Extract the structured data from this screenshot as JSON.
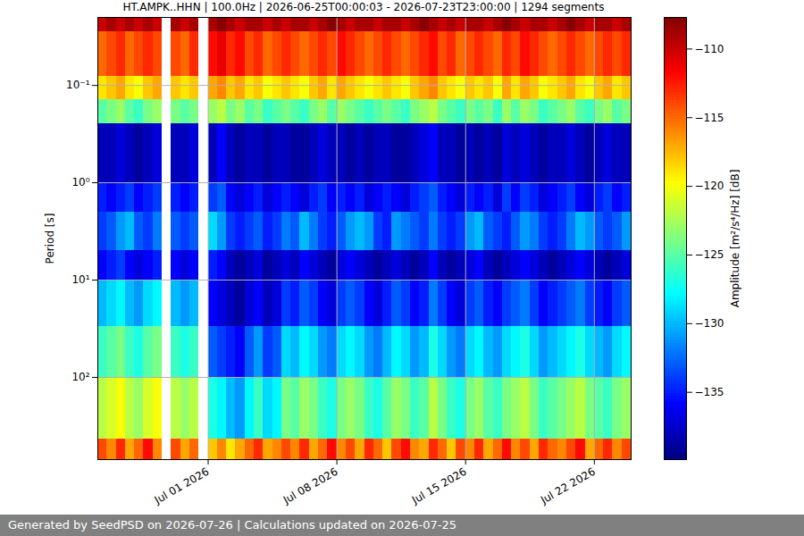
{
  "chart_data": {
    "type": "heatmap",
    "title": "HT.AMPK..HHN | 100.0Hz | 2026-06-25T00:00:03 - 2026-07-23T23:00:00 | 1294 segments",
    "ylabel": "Period [s]",
    "caption": "Generated by SeedPSD on 2026-07-26 | Calculations updated on 2026-07-25",
    "log": "y",
    "grid": true,
    "xlim": [
      "2026-06-25T00:00",
      "2026-07-24T00:00"
    ],
    "ylim": [
      0.02,
      700
    ],
    "xticks": [
      {
        "value": "2026-07-01T00:00",
        "label": "Jul 01 2026"
      },
      {
        "value": "2026-07-08T00:00",
        "label": "Jul 08 2026"
      },
      {
        "value": "2026-07-15T00:00",
        "label": "Jul 15 2026"
      },
      {
        "value": "2026-07-22T00:00",
        "label": "Jul 22 2026"
      }
    ],
    "yticks": [
      {
        "value": 0.1,
        "label": "10⁻¹"
      },
      {
        "value": 1,
        "label": "10⁰"
      },
      {
        "value": 10,
        "label": "10¹"
      },
      {
        "value": 100,
        "label": "10²"
      }
    ],
    "x": [
      "2026-06-25T00:00",
      "2026-06-25T12:00",
      "2026-06-26T00:00",
      "2026-06-26T12:00",
      "2026-06-27T00:00",
      "2026-06-27T12:00",
      "2026-06-28T00:00",
      "2026-06-28T12:00",
      "2026-06-29T00:00",
      "2026-06-29T12:00",
      "2026-06-30T00:00",
      "2026-06-30T12:00",
      "2026-07-01T00:00",
      "2026-07-01T12:00",
      "2026-07-02T00:00",
      "2026-07-02T12:00",
      "2026-07-03T00:00",
      "2026-07-03T12:00",
      "2026-07-04T00:00",
      "2026-07-04T12:00",
      "2026-07-05T00:00",
      "2026-07-05T12:00",
      "2026-07-06T00:00",
      "2026-07-06T12:00",
      "2026-07-07T00:00",
      "2026-07-07T12:00",
      "2026-07-08T00:00",
      "2026-07-08T12:00",
      "2026-07-09T00:00",
      "2026-07-09T12:00",
      "2026-07-10T00:00",
      "2026-07-10T12:00",
      "2026-07-11T00:00",
      "2026-07-11T12:00",
      "2026-07-12T00:00",
      "2026-07-12T12:00",
      "2026-07-13T00:00",
      "2026-07-13T12:00",
      "2026-07-14T00:00",
      "2026-07-14T12:00",
      "2026-07-15T00:00",
      "2026-07-15T12:00",
      "2026-07-16T00:00",
      "2026-07-16T12:00",
      "2026-07-17T00:00",
      "2026-07-17T12:00",
      "2026-07-18T00:00",
      "2026-07-18T12:00",
      "2026-07-19T00:00",
      "2026-07-19T12:00",
      "2026-07-20T00:00",
      "2026-07-20T12:00",
      "2026-07-21T00:00",
      "2026-07-21T12:00",
      "2026-07-22T00:00",
      "2026-07-22T12:00",
      "2026-07-23T00:00",
      "2026-07-23T12:00"
    ],
    "y_edges": [
      0.02,
      0.028,
      0.08,
      0.14,
      0.25,
      1,
      2,
      5,
      10,
      30,
      100,
      430,
      700
    ],
    "values": [
      [
        -110,
        -109,
        -110,
        -109,
        -110,
        -109,
        -110,
        null,
        -109,
        -110,
        -109,
        null,
        -109,
        -108,
        -109,
        -110,
        -109,
        -109,
        -110,
        -109,
        -110,
        -109,
        -109,
        -110,
        -109,
        -108,
        -109,
        -110,
        -109,
        -109,
        -110,
        -109,
        -109,
        -110,
        -109,
        -108,
        -109,
        -110,
        -109,
        -110,
        -109,
        -109,
        -110,
        -109,
        -108,
        -109,
        -110,
        -109,
        -109,
        -110,
        -109,
        -108,
        -109,
        -110,
        -109,
        -109,
        -110,
        -109
      ],
      [
        -115,
        -114,
        -113,
        -115,
        -114,
        -113,
        -114,
        null,
        -114,
        -115,
        -113,
        null,
        -112,
        -111,
        -113,
        -112,
        -114,
        -113,
        -115,
        -114,
        -113,
        -114,
        -115,
        -114,
        -113,
        -114,
        -112,
        -113,
        -114,
        -115,
        -114,
        -113,
        -114,
        -115,
        -114,
        -113,
        -112,
        -114,
        -113,
        -115,
        -114,
        -113,
        -114,
        -115,
        -113,
        -114,
        -112,
        -113,
        -114,
        -115,
        -114,
        -113,
        -114,
        -115,
        -114,
        -113,
        -114,
        -113
      ],
      [
        -119,
        -118,
        -117,
        -119,
        -120,
        -118,
        -117,
        null,
        -118,
        -119,
        -118,
        null,
        -117,
        -116,
        -118,
        -117,
        -119,
        -118,
        -120,
        -119,
        -118,
        -119,
        -120,
        -118,
        -117,
        -119,
        -117,
        -118,
        -119,
        -120,
        -119,
        -118,
        -119,
        -120,
        -118,
        -117,
        -116,
        -118,
        -119,
        -120,
        -118,
        -119,
        -118,
        -120,
        -117,
        -119,
        -117,
        -118,
        -120,
        -119,
        -118,
        -117,
        -119,
        -120,
        -118,
        -117,
        -119,
        -118
      ],
      [
        -125,
        -124,
        -123,
        -125,
        -126,
        -124,
        -123,
        null,
        -124,
        -125,
        -124,
        null,
        -123,
        -122,
        -124,
        -123,
        -125,
        -124,
        -126,
        -125,
        -124,
        -125,
        -126,
        -124,
        -123,
        -125,
        -123,
        -124,
        -125,
        -126,
        -125,
        -124,
        -125,
        -126,
        -124,
        -123,
        -122,
        -124,
        -125,
        -126,
        -124,
        -125,
        -124,
        -126,
        -123,
        -125,
        -123,
        -124,
        -126,
        -125,
        -124,
        -123,
        -125,
        -126,
        -124,
        -123,
        -125,
        -124
      ],
      [
        -138,
        -138,
        -137,
        -138,
        -139,
        -138,
        -137,
        null,
        -138,
        -138,
        -137,
        null,
        -138,
        -136,
        -138,
        -139,
        -138,
        -138,
        -139,
        -138,
        -138,
        -139,
        -139,
        -138,
        -137,
        -138,
        -138,
        -139,
        -138,
        -139,
        -138,
        -138,
        -139,
        -139,
        -138,
        -137,
        -136,
        -138,
        -138,
        -139,
        -138,
        -139,
        -138,
        -139,
        -137,
        -138,
        -137,
        -138,
        -139,
        -138,
        -138,
        -137,
        -138,
        -139,
        -138,
        -137,
        -138,
        -138
      ],
      [
        -135,
        -136,
        -135,
        -134,
        -136,
        -135,
        -134,
        null,
        -135,
        -136,
        -135,
        null,
        -134,
        -133,
        -136,
        -137,
        -136,
        -135,
        -137,
        -136,
        -135,
        -136,
        -137,
        -135,
        -134,
        -136,
        -135,
        -136,
        -135,
        -137,
        -136,
        -135,
        -136,
        -137,
        -135,
        -134,
        -133,
        -135,
        -136,
        -137,
        -135,
        -136,
        -135,
        -137,
        -134,
        -136,
        -134,
        -135,
        -137,
        -136,
        -135,
        -134,
        -136,
        -137,
        -135,
        -134,
        -136,
        -135
      ],
      [
        -134,
        -133,
        -131,
        -130,
        -133,
        -134,
        -132,
        null,
        -133,
        -134,
        -133,
        null,
        -129,
        -131,
        -134,
        -135,
        -134,
        -133,
        -135,
        -134,
        -132,
        -133,
        -130,
        -132,
        -134,
        -135,
        -133,
        -131,
        -130,
        -131,
        -134,
        -135,
        -131,
        -132,
        -133,
        -134,
        -132,
        -134,
        -135,
        -134,
        -131,
        -130,
        -133,
        -134,
        -135,
        -133,
        -131,
        -132,
        -134,
        -135,
        -134,
        -132,
        -130,
        -131,
        -133,
        -134,
        -133,
        -131
      ],
      [
        -136,
        -135,
        -134,
        -136,
        -137,
        -136,
        -135,
        null,
        -136,
        -137,
        -136,
        null,
        -135,
        -136,
        -138,
        -139,
        -138,
        -137,
        -139,
        -138,
        -137,
        -138,
        -136,
        -137,
        -138,
        -139,
        -137,
        -136,
        -137,
        -138,
        -139,
        -138,
        -137,
        -138,
        -139,
        -138,
        -136,
        -138,
        -139,
        -138,
        -137,
        -136,
        -138,
        -139,
        -138,
        -137,
        -136,
        -137,
        -138,
        -139,
        -138,
        -137,
        -136,
        -137,
        -138,
        -139,
        -138,
        -137
      ],
      [
        -130,
        -129,
        -128,
        -130,
        -131,
        -129,
        -128,
        null,
        -130,
        -131,
        -130,
        null,
        -136,
        -137,
        -138,
        -139,
        -137,
        -136,
        -138,
        -137,
        -134,
        -135,
        -133,
        -134,
        -136,
        -137,
        -134,
        -133,
        -134,
        -136,
        -137,
        -135,
        -133,
        -134,
        -136,
        -135,
        -132,
        -134,
        -136,
        -137,
        -134,
        -133,
        -135,
        -136,
        -134,
        -133,
        -132,
        -134,
        -136,
        -135,
        -134,
        -133,
        -132,
        -134,
        -135,
        -136,
        -134,
        -133
      ],
      [
        -126,
        -125,
        -124,
        -126,
        -127,
        -125,
        -124,
        null,
        -126,
        -127,
        -126,
        null,
        -133,
        -134,
        -135,
        -136,
        -133,
        -131,
        -134,
        -133,
        -129,
        -130,
        -128,
        -129,
        -131,
        -132,
        -129,
        -128,
        -129,
        -131,
        -132,
        -130,
        -128,
        -129,
        -131,
        -130,
        -127,
        -129,
        -131,
        -132,
        -129,
        -128,
        -130,
        -131,
        -129,
        -128,
        -127,
        -129,
        -131,
        -130,
        -129,
        -128,
        -127,
        -129,
        -130,
        -131,
        -129,
        -128
      ],
      [
        -122,
        -121,
        -120,
        -122,
        -123,
        -121,
        -120,
        null,
        -122,
        -123,
        -122,
        null,
        -127,
        -128,
        -130,
        -131,
        -128,
        -126,
        -129,
        -128,
        -124,
        -125,
        -123,
        -124,
        -126,
        -127,
        -124,
        -123,
        -124,
        -126,
        -127,
        -125,
        -123,
        -124,
        -126,
        -125,
        -122,
        -124,
        -126,
        -127,
        -124,
        -123,
        -125,
        -126,
        -124,
        -123,
        -122,
        -124,
        -126,
        -125,
        -124,
        -123,
        -122,
        -124,
        -125,
        -126,
        -124,
        -123
      ],
      [
        -114,
        -116,
        -113,
        -117,
        -115,
        -112,
        -116,
        null,
        -114,
        -117,
        -115,
        null,
        -118,
        -116,
        -119,
        -117,
        -115,
        -113,
        -117,
        -116,
        -114,
        -116,
        -113,
        -117,
        -115,
        -112,
        -116,
        -114,
        -117,
        -113,
        -115,
        -118,
        -114,
        -112,
        -116,
        -117,
        -113,
        -115,
        -118,
        -114,
        -116,
        -113,
        -117,
        -115,
        -112,
        -116,
        -114,
        -117,
        -113,
        -115,
        -116,
        -114,
        -112,
        -117,
        -115,
        -113,
        -116,
        -114
      ]
    ],
    "colorbar": {
      "label": "Amplitude [m²/s⁴/Hz] [dB]",
      "range": [
        -139.9,
        -107.7
      ],
      "ticks": [
        -135,
        -130,
        -125,
        -120,
        -115,
        -110
      ],
      "colors": [
        "#00007f",
        "#0000ff",
        "#007fff",
        "#00ffff",
        "#7fff7f",
        "#ffff00",
        "#ff7f00",
        "#ff0000",
        "#7f0000"
      ]
    }
  }
}
